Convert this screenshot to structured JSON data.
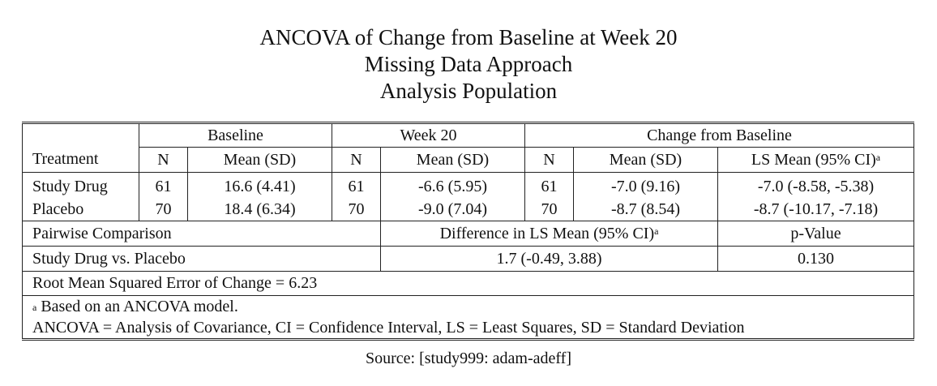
{
  "titles": {
    "line1": "ANCOVA of Change from Baseline at Week 20",
    "line2": "Missing Data Approach",
    "line3": "Analysis Population"
  },
  "table": {
    "groups": {
      "baseline": "Baseline",
      "week20": "Week 20",
      "change": "Change from Baseline"
    },
    "columns": {
      "treatment": "Treatment",
      "n": "N",
      "mean_sd": "Mean (SD)",
      "ls_mean_ci": "LS Mean (95% CI)",
      "footnote_marker": "a"
    },
    "rows": [
      {
        "treatment": "Study Drug",
        "baseline_n": "61",
        "baseline_mean_sd": "16.6 (4.41)",
        "week20_n": "61",
        "week20_mean_sd": "-6.6 (5.95)",
        "change_n": "61",
        "change_mean_sd": "-7.0 (9.16)",
        "ls_mean_ci": "-7.0 (-8.58, -5.38)"
      },
      {
        "treatment": "Placebo",
        "baseline_n": "70",
        "baseline_mean_sd": "18.4 (6.34)",
        "week20_n": "70",
        "week20_mean_sd": "-9.0 (7.04)",
        "change_n": "70",
        "change_mean_sd": "-8.7 (8.54)",
        "ls_mean_ci": "-8.7 (-10.17, -7.18)"
      }
    ],
    "pairwise": {
      "label": "Pairwise Comparison",
      "diff_header": "Difference in LS Mean (95% CI)",
      "pvalue_header": "p-Value",
      "comparison": "Study Drug vs. Placebo",
      "diff_value": "1.7 (-0.49, 3.88)",
      "pvalue": "0.130"
    },
    "rmse": "Root Mean Squared Error of Change = 6.23",
    "footnotes": {
      "marker": "a",
      "note_a": "Based on an ANCOVA model.",
      "abbreviations": "ANCOVA = Analysis of Covariance, CI = Confidence Interval, LS = Least Squares, SD = Standard Deviation"
    }
  },
  "source": "Source: [study999: adam-adeff]"
}
